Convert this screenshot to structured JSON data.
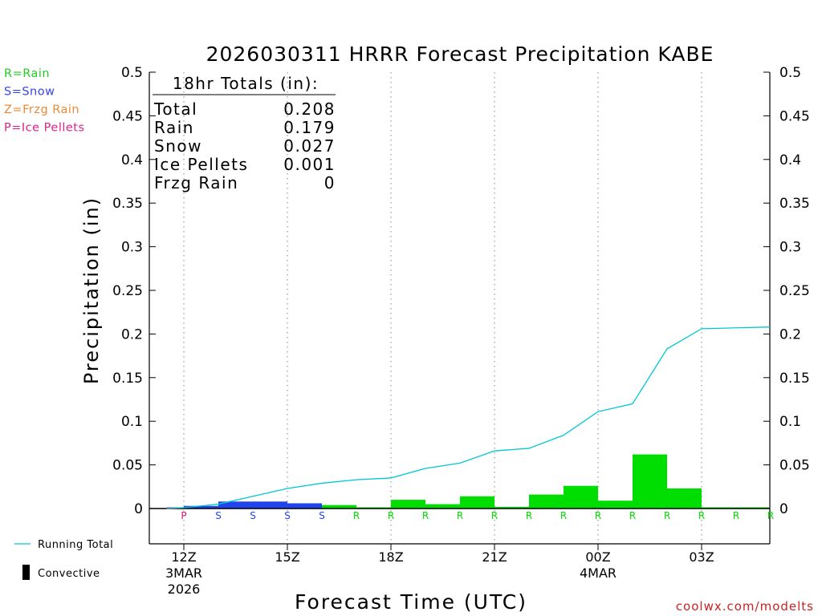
{
  "chart_data": {
    "type": "bar",
    "title": "2026030311 HRRR Forecast Precipitation KABE",
    "xlabel": "Forecast Time (UTC)",
    "ylabel": "Precipitation (in)",
    "ylim": [
      0,
      0.5
    ],
    "y_ticks": [
      "0",
      "0.05",
      "0.1",
      "0.15",
      "0.2",
      "0.25",
      "0.3",
      "0.35",
      "0.4",
      "0.45",
      "0.5"
    ],
    "x_ticks": [
      {
        "hour": 12,
        "label": "12Z",
        "sub1": "3MAR",
        "sub2": "2026"
      },
      {
        "hour": 15,
        "label": "15Z",
        "sub1": "",
        "sub2": ""
      },
      {
        "hour": 18,
        "label": "18Z",
        "sub1": "",
        "sub2": ""
      },
      {
        "hour": 21,
        "label": "21Z",
        "sub1": "",
        "sub2": ""
      },
      {
        "hour": 24,
        "label": "00Z",
        "sub1": "4MAR",
        "sub2": ""
      },
      {
        "hour": 27,
        "label": "03Z",
        "sub1": "",
        "sub2": ""
      }
    ],
    "hourly_bars": [
      {
        "hour": 12,
        "value": 0.001,
        "type": "P"
      },
      {
        "hour": 13,
        "value": 0.003,
        "type": "S"
      },
      {
        "hour": 14,
        "value": 0.008,
        "type": "S"
      },
      {
        "hour": 15,
        "value": 0.008,
        "type": "S"
      },
      {
        "hour": 16,
        "value": 0.006,
        "type": "S"
      },
      {
        "hour": 17,
        "value": 0.004,
        "type": "R"
      },
      {
        "hour": 18,
        "value": 0.001,
        "type": "R"
      },
      {
        "hour": 19,
        "value": 0.01,
        "type": "R"
      },
      {
        "hour": 20,
        "value": 0.005,
        "type": "R"
      },
      {
        "hour": 21,
        "value": 0.014,
        "type": "R"
      },
      {
        "hour": 22,
        "value": 0.002,
        "type": "R"
      },
      {
        "hour": 23,
        "value": 0.016,
        "type": "R"
      },
      {
        "hour": 24,
        "value": 0.026,
        "type": "R"
      },
      {
        "hour": 25,
        "value": 0.009,
        "type": "R"
      },
      {
        "hour": 26,
        "value": 0.062,
        "type": "R"
      },
      {
        "hour": 27,
        "value": 0.023,
        "type": "R"
      },
      {
        "hour": 28,
        "value": 0.001,
        "type": "R"
      },
      {
        "hour": 29,
        "value": 0.0,
        "type": "R"
      }
    ],
    "running_total": [
      {
        "hour": 11.5,
        "value": 0.0
      },
      {
        "hour": 12,
        "value": 0.001
      },
      {
        "hour": 13,
        "value": 0.005
      },
      {
        "hour": 14,
        "value": 0.014
      },
      {
        "hour": 15,
        "value": 0.023
      },
      {
        "hour": 16,
        "value": 0.029
      },
      {
        "hour": 17,
        "value": 0.033
      },
      {
        "hour": 18,
        "value": 0.035
      },
      {
        "hour": 19,
        "value": 0.046
      },
      {
        "hour": 20,
        "value": 0.052
      },
      {
        "hour": 21,
        "value": 0.066
      },
      {
        "hour": 22,
        "value": 0.069
      },
      {
        "hour": 23,
        "value": 0.084
      },
      {
        "hour": 24,
        "value": 0.111
      },
      {
        "hour": 25,
        "value": 0.12
      },
      {
        "hour": 26,
        "value": 0.183
      },
      {
        "hour": 27,
        "value": 0.206
      },
      {
        "hour": 28,
        "value": 0.207
      },
      {
        "hour": 29,
        "value": 0.208
      }
    ],
    "totals_box": {
      "header": "18hr Totals (in):",
      "rows": [
        {
          "label": "Total",
          "value": "0.208"
        },
        {
          "label": "Rain",
          "value": "0.179"
        },
        {
          "label": "Snow",
          "value": "0.027"
        },
        {
          "label": "Ice Pellets",
          "value": "0.001"
        },
        {
          "label": "Frzg Rain",
          "value": "0"
        }
      ]
    },
    "type_legend": [
      {
        "code": "R",
        "text": "R=Rain",
        "color": "#22cc22"
      },
      {
        "code": "S",
        "text": "S=Snow",
        "color": "#3344ee"
      },
      {
        "code": "Z",
        "text": "Z=Frzg Rain",
        "color": "#ee8833"
      },
      {
        "code": "P",
        "text": "P=Ice Pellets",
        "color": "#dd2288"
      }
    ],
    "line_legend": "Running Total",
    "convective_legend": "Convective",
    "credit": "coolwx.com/modelts",
    "colors": {
      "R": "#00dd00",
      "S": "#2244ee",
      "P": "#dd1177",
      "Z": "#ee8833",
      "running_total": "#00c8d2",
      "credit": "#cc2222"
    }
  }
}
